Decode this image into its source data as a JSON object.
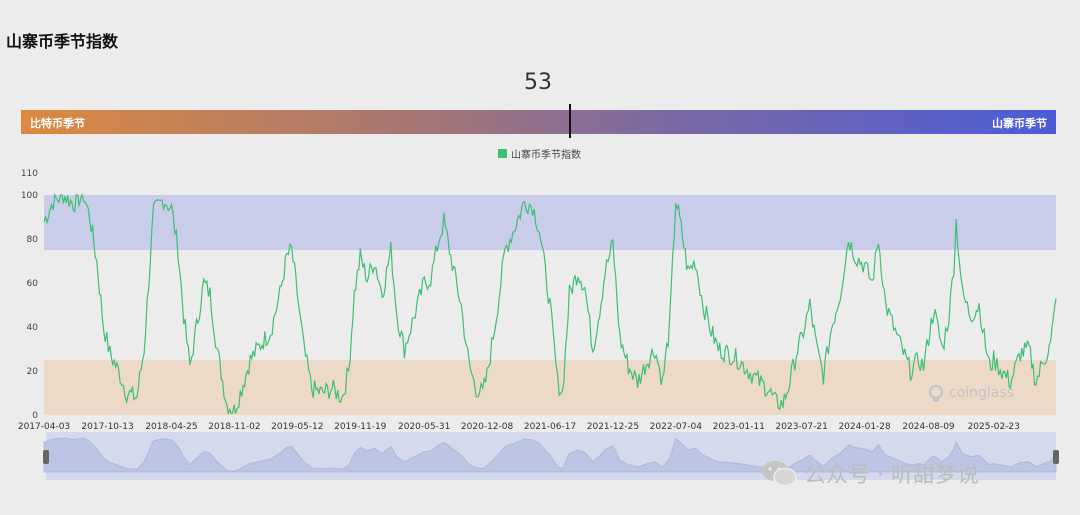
{
  "page_title": "山寨币季节指数",
  "gauge": {
    "value": "53",
    "value_num": 53,
    "left_label": "比特币季节",
    "right_label": "山寨币季节",
    "colors": {
      "left": "#dd8a40",
      "right": "#4b5cd8"
    }
  },
  "legend": {
    "label": "山寨币季节指数",
    "color": "#3fbf72"
  },
  "watermark": {
    "logo_text": "coinglass",
    "icon": "coinglass-logo-icon"
  },
  "wechat_watermark": {
    "text": "公众号 · 听甜梦说",
    "icon": "wechat-icon"
  },
  "chart_data": {
    "type": "line",
    "title": "",
    "series": [
      {
        "name": "山寨币季节指数",
        "color": "#3fbf72"
      }
    ],
    "ylim": [
      0,
      110
    ],
    "yticks": [
      "0",
      "20",
      "40",
      "60",
      "80",
      "100",
      "110"
    ],
    "x_tick_labels": [
      "2017-04-03",
      "2017-10-13",
      "2018-04-25",
      "2018-11-02",
      "2019-05-12",
      "2019-11-19",
      "2020-05-31",
      "2020-12-08",
      "2021-06-17",
      "2021-12-25",
      "2022-07-04",
      "2023-01-11",
      "2023-07-21",
      "2024-01-28",
      "2024-08-09",
      "2025-02-23"
    ],
    "bands": [
      {
        "from": 75,
        "to": 100,
        "color": "#c9cde9"
      },
      {
        "from": 0,
        "to": 25,
        "color": "#ecd9c8"
      }
    ],
    "grid": false,
    "legend_position": "top-center",
    "points": [
      [
        "2017-04-03",
        88
      ],
      [
        "2017-05-01",
        97
      ],
      [
        "2017-06-01",
        100
      ],
      [
        "2017-07-01",
        96
      ],
      [
        "2017-08-01",
        100
      ],
      [
        "2017-08-20",
        90
      ],
      [
        "2017-09-10",
        70
      ],
      [
        "2017-10-01",
        40
      ],
      [
        "2017-10-20",
        28
      ],
      [
        "2017-11-15",
        20
      ],
      [
        "2017-12-10",
        10
      ],
      [
        "2018-01-10",
        8
      ],
      [
        "2018-02-01",
        30
      ],
      [
        "2018-03-01",
        92
      ],
      [
        "2018-04-01",
        98
      ],
      [
        "2018-04-25",
        94
      ],
      [
        "2018-05-15",
        75
      ],
      [
        "2018-06-01",
        45
      ],
      [
        "2018-06-20",
        22
      ],
      [
        "2018-07-10",
        40
      ],
      [
        "2018-08-01",
        60
      ],
      [
        "2018-08-20",
        55
      ],
      [
        "2018-09-10",
        30
      ],
      [
        "2018-10-10",
        5
      ],
      [
        "2018-11-01",
        2
      ],
      [
        "2018-11-20",
        10
      ],
      [
        "2018-12-20",
        25
      ],
      [
        "2019-01-20",
        32
      ],
      [
        "2019-02-20",
        38
      ],
      [
        "2019-03-20",
        55
      ],
      [
        "2019-04-10",
        72
      ],
      [
        "2019-04-25",
        75
      ],
      [
        "2019-05-12",
        55
      ],
      [
        "2019-06-01",
        30
      ],
      [
        "2019-06-25",
        12
      ],
      [
        "2019-07-25",
        10
      ],
      [
        "2019-08-25",
        12
      ],
      [
        "2019-09-25",
        8
      ],
      [
        "2019-10-15",
        20
      ],
      [
        "2019-11-01",
        55
      ],
      [
        "2019-11-19",
        72
      ],
      [
        "2019-12-10",
        62
      ],
      [
        "2020-01-01",
        70
      ],
      [
        "2020-01-25",
        55
      ],
      [
        "2020-02-20",
        75
      ],
      [
        "2020-03-10",
        45
      ],
      [
        "2020-04-01",
        30
      ],
      [
        "2020-04-25",
        42
      ],
      [
        "2020-05-31",
        60
      ],
      [
        "2020-06-20",
        62
      ],
      [
        "2020-07-15",
        80
      ],
      [
        "2020-07-30",
        88
      ],
      [
        "2020-08-20",
        72
      ],
      [
        "2020-09-20",
        50
      ],
      [
        "2020-10-15",
        22
      ],
      [
        "2020-11-05",
        12
      ],
      [
        "2020-11-25",
        10
      ],
      [
        "2020-12-08",
        18
      ],
      [
        "2021-01-05",
        45
      ],
      [
        "2021-02-01",
        75
      ],
      [
        "2021-03-01",
        85
      ],
      [
        "2021-04-01",
        97
      ],
      [
        "2021-04-25",
        95
      ],
      [
        "2021-05-15",
        85
      ],
      [
        "2021-06-17",
        50
      ],
      [
        "2021-07-10",
        15
      ],
      [
        "2021-07-25",
        10
      ],
      [
        "2021-08-15",
        55
      ],
      [
        "2021-09-10",
        65
      ],
      [
        "2021-10-01",
        58
      ],
      [
        "2021-10-25",
        30
      ],
      [
        "2021-11-15",
        48
      ],
      [
        "2021-12-01",
        65
      ],
      [
        "2021-12-25",
        78
      ],
      [
        "2022-01-15",
        35
      ],
      [
        "2022-02-10",
        22
      ],
      [
        "2022-03-10",
        15
      ],
      [
        "2022-04-10",
        25
      ],
      [
        "2022-05-01",
        30
      ],
      [
        "2022-05-25",
        15
      ],
      [
        "2022-06-15",
        40
      ],
      [
        "2022-07-04",
        98
      ],
      [
        "2022-07-20",
        85
      ],
      [
        "2022-08-10",
        65
      ],
      [
        "2022-09-01",
        70
      ],
      [
        "2022-09-25",
        50
      ],
      [
        "2022-10-20",
        38
      ],
      [
        "2022-11-10",
        30
      ],
      [
        "2022-12-10",
        28
      ],
      [
        "2023-01-11",
        25
      ],
      [
        "2023-02-10",
        20
      ],
      [
        "2023-03-15",
        15
      ],
      [
        "2023-04-10",
        12
      ],
      [
        "2023-05-01",
        6
      ],
      [
        "2023-05-25",
        5
      ],
      [
        "2023-06-15",
        15
      ],
      [
        "2023-07-05",
        28
      ],
      [
        "2023-07-21",
        35
      ],
      [
        "2023-08-15",
        50
      ],
      [
        "2023-09-05",
        30
      ],
      [
        "2023-09-25",
        18
      ],
      [
        "2023-10-20",
        40
      ],
      [
        "2023-11-15",
        55
      ],
      [
        "2023-12-10",
        80
      ],
      [
        "2024-01-01",
        72
      ],
      [
        "2024-01-28",
        68
      ],
      [
        "2024-02-20",
        60
      ],
      [
        "2024-03-10",
        80
      ],
      [
        "2024-04-01",
        50
      ],
      [
        "2024-04-25",
        40
      ],
      [
        "2024-05-20",
        30
      ],
      [
        "2024-06-15",
        20
      ],
      [
        "2024-07-10",
        25
      ],
      [
        "2024-07-25",
        22
      ],
      [
        "2024-08-09",
        35
      ],
      [
        "2024-08-25",
        48
      ],
      [
        "2024-09-20",
        30
      ],
      [
        "2024-10-10",
        45
      ],
      [
        "2024-10-25",
        68
      ],
      [
        "2024-11-01",
        88
      ],
      [
        "2024-11-20",
        55
      ],
      [
        "2024-12-15",
        45
      ],
      [
        "2025-01-10",
        50
      ],
      [
        "2025-01-25",
        35
      ],
      [
        "2025-02-10",
        22
      ],
      [
        "2025-02-23",
        25
      ],
      [
        "2025-03-20",
        20
      ],
      [
        "2025-04-15",
        15
      ],
      [
        "2025-05-15",
        28
      ],
      [
        "2025-06-10",
        30
      ],
      [
        "2025-07-01",
        15
      ],
      [
        "2025-07-25",
        25
      ],
      [
        "2025-08-15",
        32
      ],
      [
        "2025-08-31",
        53
      ]
    ]
  }
}
